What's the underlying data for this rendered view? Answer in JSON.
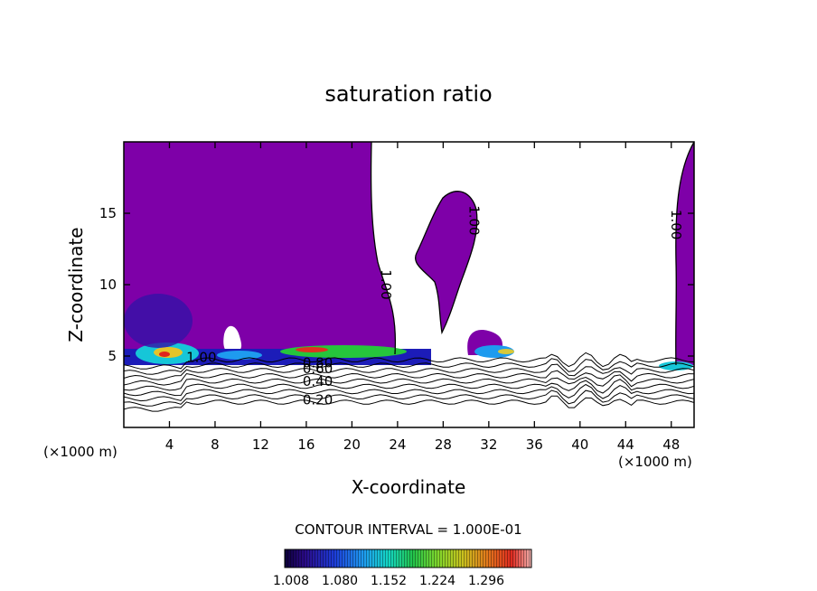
{
  "chart_data": {
    "type": "contour",
    "title": "saturation ratio",
    "xlabel": "X-coordinate",
    "ylabel": "Z-coordinate",
    "x_unit_label": "(×1000 m)",
    "x_unit_label_right": "(×1000 m)",
    "xlim": [
      0,
      50
    ],
    "ylim": [
      0,
      20
    ],
    "x_ticks": [
      4,
      8,
      12,
      16,
      20,
      24,
      28,
      32,
      36,
      40,
      44,
      48
    ],
    "x_tick_labels": [
      "4",
      "8",
      "12",
      "16",
      "20",
      "24",
      "28",
      "32",
      "36",
      "40",
      "44",
      "48"
    ],
    "y_ticks": [
      5,
      10,
      15
    ],
    "y_tick_labels": [
      "5",
      "10",
      "15"
    ],
    "contour_interval_text": "CONTOUR INTERVAL = 1.000E-01",
    "contour_levels": [
      0.1,
      0.2,
      0.3,
      0.4,
      0.5,
      0.6,
      0.7,
      0.8,
      0.9,
      1.0
    ],
    "contour_labels": [
      {
        "text": "1.00",
        "x": 6.8,
        "z": 4.6
      },
      {
        "text": "0.80",
        "x": 17.0,
        "z": 4.2
      },
      {
        "text": "0.60",
        "x": 17.0,
        "z": 3.8
      },
      {
        "text": "0.40",
        "x": 17.0,
        "z": 2.9
      },
      {
        "text": "0.20",
        "x": 17.0,
        "z": 1.6
      },
      {
        "text": "1.00",
        "x": 22.6,
        "z": 10.0
      },
      {
        "text": "1.00",
        "x": 30.3,
        "z": 14.5
      },
      {
        "text": "1.00",
        "x": 48.0,
        "z": 14.2
      }
    ],
    "colorbar": {
      "min": 1.008,
      "max": 1.296,
      "tick_labels": [
        "1.008",
        "1.080",
        "1.152",
        "1.224",
        "1.296"
      ]
    },
    "colors": {
      "saturated_fill": "#7e00a8",
      "background": "#ffffff",
      "lines": "#000000"
    }
  }
}
